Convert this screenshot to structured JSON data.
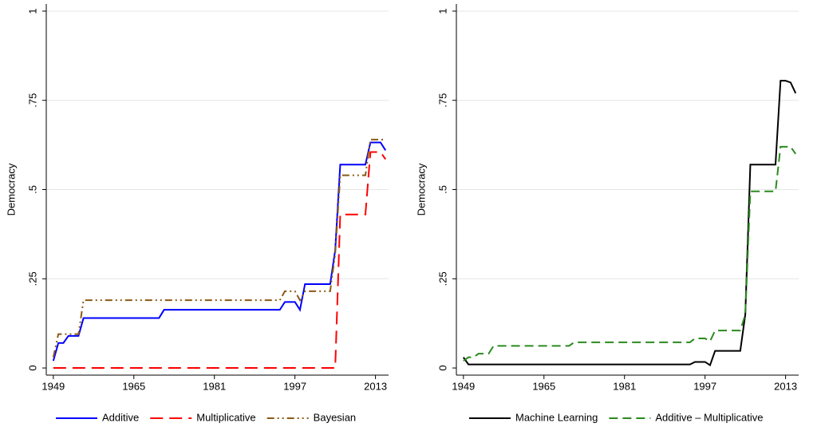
{
  "chart_data": [
    {
      "type": "line",
      "ylabel": "Democracy",
      "x": [
        1949,
        1950,
        1951,
        1952,
        1953,
        1954,
        1955,
        1956,
        1957,
        1958,
        1959,
        1960,
        1961,
        1962,
        1963,
        1964,
        1965,
        1966,
        1967,
        1968,
        1969,
        1970,
        1971,
        1972,
        1973,
        1974,
        1975,
        1976,
        1977,
        1978,
        1979,
        1980,
        1981,
        1982,
        1983,
        1984,
        1985,
        1986,
        1987,
        1988,
        1989,
        1990,
        1991,
        1992,
        1993,
        1994,
        1995,
        1996,
        1997,
        1998,
        1999,
        2000,
        2001,
        2002,
        2003,
        2004,
        2005,
        2006,
        2007,
        2008,
        2009,
        2010,
        2011,
        2012,
        2013,
        2014,
        2015
      ],
      "xlim": [
        1947.6,
        2015.6
      ],
      "xticks": [
        1949,
        1965,
        1981,
        1997,
        2013
      ],
      "ylim": [
        -0.02,
        1.02
      ],
      "yticks": [
        0,
        {
          "value": 0.25,
          "label": ".25"
        },
        {
          "value": 0.5,
          "label": ".5"
        },
        {
          "value": 0.75,
          "label": ".75"
        },
        1
      ],
      "grid": true,
      "series": [
        {
          "name": "Additive",
          "color": "#0000ff",
          "dash": "solid",
          "values": [
            0.02,
            0.07,
            0.07,
            0.09,
            0.09,
            0.09,
            0.14,
            0.14,
            0.14,
            0.14,
            0.14,
            0.14,
            0.14,
            0.14,
            0.14,
            0.14,
            0.14,
            0.14,
            0.14,
            0.14,
            0.14,
            0.14,
            0.163,
            0.163,
            0.163,
            0.163,
            0.163,
            0.163,
            0.163,
            0.163,
            0.163,
            0.163,
            0.163,
            0.163,
            0.163,
            0.163,
            0.163,
            0.163,
            0.163,
            0.163,
            0.163,
            0.163,
            0.163,
            0.163,
            0.163,
            0.163,
            0.185,
            0.185,
            0.185,
            0.163,
            0.235,
            0.235,
            0.235,
            0.235,
            0.235,
            0.235,
            0.33,
            0.57,
            0.57,
            0.57,
            0.57,
            0.57,
            0.57,
            0.632,
            0.632,
            0.632,
            0.61
          ]
        },
        {
          "name": "Multiplicative",
          "color": "#ff0000",
          "dash": "long",
          "values": [
            0,
            0,
            0,
            0,
            0,
            0,
            0,
            0,
            0,
            0,
            0,
            0,
            0,
            0,
            0,
            0,
            0,
            0,
            0,
            0,
            0,
            0,
            0,
            0,
            0,
            0,
            0,
            0,
            0,
            0,
            0,
            0,
            0,
            0,
            0,
            0,
            0,
            0,
            0,
            0,
            0,
            0,
            0,
            0,
            0,
            0,
            0,
            0,
            0,
            0,
            0,
            0,
            0,
            0,
            0,
            0,
            0,
            0.43,
            0.43,
            0.43,
            0.43,
            0.43,
            0.43,
            0.605,
            0.605,
            0.605,
            0.585
          ]
        },
        {
          "name": "Bayesian",
          "color": "#8b5a14",
          "dash": "dashdotdot",
          "values": [
            0.03,
            0.095,
            0.095,
            0.095,
            0.095,
            0.095,
            0.19,
            0.19,
            0.19,
            0.19,
            0.19,
            0.19,
            0.19,
            0.19,
            0.19,
            0.19,
            0.19,
            0.19,
            0.19,
            0.19,
            0.19,
            0.19,
            0.19,
            0.19,
            0.19,
            0.19,
            0.19,
            0.19,
            0.19,
            0.19,
            0.19,
            0.19,
            0.19,
            0.19,
            0.19,
            0.19,
            0.19,
            0.19,
            0.19,
            0.19,
            0.19,
            0.19,
            0.19,
            0.19,
            0.19,
            0.19,
            0.215,
            0.215,
            0.215,
            0.19,
            0.215,
            0.215,
            0.215,
            0.215,
            0.215,
            0.215,
            0.32,
            0.54,
            0.54,
            0.54,
            0.54,
            0.54,
            0.54,
            0.64,
            0.64,
            0.64,
            0.64
          ]
        }
      ]
    },
    {
      "type": "line",
      "ylabel": "Democracy",
      "x": [
        1949,
        1950,
        1951,
        1952,
        1953,
        1954,
        1955,
        1956,
        1957,
        1958,
        1959,
        1960,
        1961,
        1962,
        1963,
        1964,
        1965,
        1966,
        1967,
        1968,
        1969,
        1970,
        1971,
        1972,
        1973,
        1974,
        1975,
        1976,
        1977,
        1978,
        1979,
        1980,
        1981,
        1982,
        1983,
        1984,
        1985,
        1986,
        1987,
        1988,
        1989,
        1990,
        1991,
        1992,
        1993,
        1994,
        1995,
        1996,
        1997,
        1998,
        1999,
        2000,
        2001,
        2002,
        2003,
        2004,
        2005,
        2006,
        2007,
        2008,
        2009,
        2010,
        2011,
        2012,
        2013,
        2014,
        2015
      ],
      "xlim": [
        1947.6,
        2015.6
      ],
      "xticks": [
        1949,
        1965,
        1981,
        1997,
        2013
      ],
      "ylim": [
        -0.02,
        1.02
      ],
      "yticks": [
        0,
        {
          "value": 0.25,
          "label": ".25"
        },
        {
          "value": 0.5,
          "label": ".5"
        },
        {
          "value": 0.75,
          "label": ".75"
        },
        1
      ],
      "grid": true,
      "series": [
        {
          "name": "Machine Learning",
          "color": "#000000",
          "dash": "solid",
          "values": [
            0.03,
            0.01,
            0.01,
            0.01,
            0.01,
            0.01,
            0.01,
            0.01,
            0.01,
            0.01,
            0.01,
            0.01,
            0.01,
            0.01,
            0.01,
            0.01,
            0.01,
            0.01,
            0.01,
            0.01,
            0.01,
            0.01,
            0.01,
            0.01,
            0.01,
            0.01,
            0.01,
            0.01,
            0.01,
            0.01,
            0.01,
            0.01,
            0.01,
            0.01,
            0.01,
            0.01,
            0.01,
            0.01,
            0.01,
            0.01,
            0.01,
            0.01,
            0.01,
            0.01,
            0.01,
            0.01,
            0.017,
            0.017,
            0.017,
            0.008,
            0.048,
            0.048,
            0.048,
            0.048,
            0.048,
            0.048,
            0.15,
            0.57,
            0.57,
            0.57,
            0.57,
            0.57,
            0.57,
            0.805,
            0.805,
            0.8,
            0.77
          ]
        },
        {
          "name": "Additive – Multiplicative",
          "color": "#2a8a1e",
          "dash": "dash",
          "values": [
            0.02,
            0.03,
            0.03,
            0.04,
            0.04,
            0.04,
            0.062,
            0.062,
            0.062,
            0.062,
            0.062,
            0.062,
            0.062,
            0.062,
            0.062,
            0.062,
            0.062,
            0.062,
            0.062,
            0.062,
            0.062,
            0.062,
            0.072,
            0.072,
            0.072,
            0.072,
            0.072,
            0.072,
            0.072,
            0.072,
            0.072,
            0.072,
            0.072,
            0.072,
            0.072,
            0.072,
            0.072,
            0.072,
            0.072,
            0.072,
            0.072,
            0.072,
            0.072,
            0.072,
            0.072,
            0.072,
            0.083,
            0.083,
            0.083,
            0.075,
            0.105,
            0.105,
            0.105,
            0.105,
            0.105,
            0.105,
            0.15,
            0.495,
            0.495,
            0.495,
            0.495,
            0.495,
            0.495,
            0.62,
            0.62,
            0.62,
            0.6
          ]
        }
      ]
    }
  ]
}
